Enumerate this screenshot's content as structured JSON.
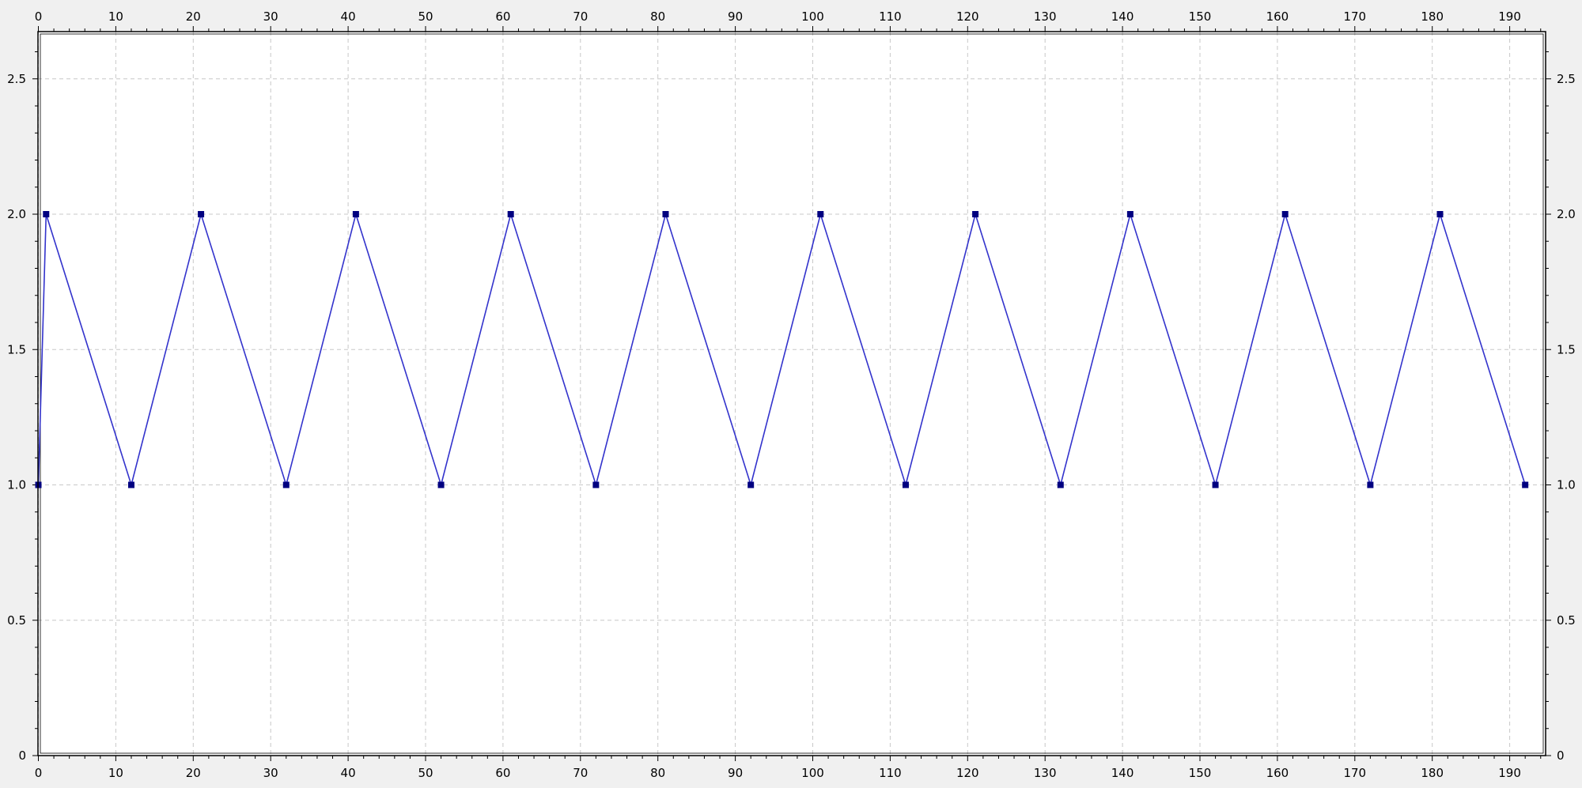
{
  "chart_data": {
    "type": "line",
    "title": "",
    "xlabel": "",
    "ylabel": "",
    "xlim": [
      0,
      195
    ],
    "ylim": [
      0,
      2.7
    ],
    "grid": true,
    "x_ticks": [
      0,
      10,
      20,
      30,
      40,
      50,
      60,
      70,
      80,
      90,
      100,
      110,
      120,
      130,
      140,
      150,
      160,
      170,
      180,
      190
    ],
    "x_tick_labels": [
      "0",
      "10",
      "20",
      "30",
      "40",
      "50",
      "60",
      "70",
      "80",
      "90",
      "100",
      "110",
      "120",
      "130",
      "140",
      "150",
      "160",
      "170",
      "180",
      "190"
    ],
    "y_ticks": [
      0,
      0.5,
      1.0,
      1.5,
      2.0,
      2.5
    ],
    "y_tick_labels": [
      "0",
      "0.5",
      "1.0",
      "1.5",
      "2.0",
      "2.5"
    ],
    "series": [
      {
        "x": [
          0,
          1,
          12,
          21,
          32,
          41,
          52,
          61,
          72,
          81,
          92,
          101,
          112,
          121,
          132,
          141,
          152,
          161,
          172,
          181,
          192
        ],
        "y": [
          1,
          2,
          1,
          2,
          1,
          2,
          1,
          2,
          1,
          2,
          1,
          2,
          1,
          2,
          1,
          2,
          1,
          2,
          1,
          2,
          1
        ]
      }
    ],
    "colors": {
      "line": "#3333cc",
      "marker": "#000080",
      "grid": "#c8c8c8",
      "plot_background": "#ffffff",
      "outer_background": "#f0f0f0"
    }
  }
}
